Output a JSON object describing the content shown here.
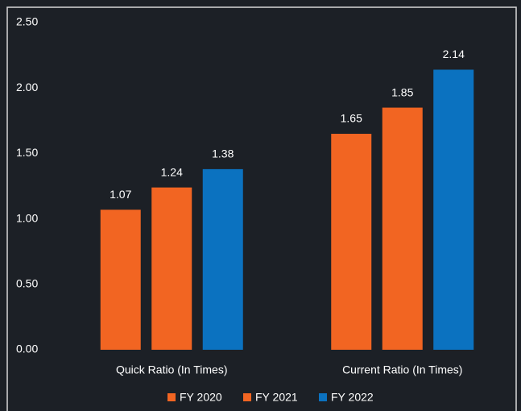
{
  "chart_data": {
    "type": "bar",
    "categories": [
      "Quick Ratio (In Times)",
      "Current Ratio (In Times)"
    ],
    "series": [
      {
        "name": "FY 2020",
        "color": "#f26522",
        "values": [
          1.07,
          1.65
        ]
      },
      {
        "name": "FY 2021",
        "color": "#f26522",
        "values": [
          1.24,
          1.85
        ]
      },
      {
        "name": "FY 2022",
        "color": "#0b72c0",
        "values": [
          1.38,
          2.14
        ]
      }
    ],
    "ylim": [
      0,
      2.5
    ],
    "yticks": [
      {
        "value": 0,
        "label": "0.00"
      },
      {
        "value": 0.5,
        "label": "0.50"
      },
      {
        "value": 1,
        "label": "1.00"
      },
      {
        "value": 1.5,
        "label": "1.50"
      },
      {
        "value": 2,
        "label": "2.00"
      },
      {
        "value": 2.5,
        "label": "2.50"
      }
    ],
    "grid": false,
    "legend": "bottom"
  }
}
